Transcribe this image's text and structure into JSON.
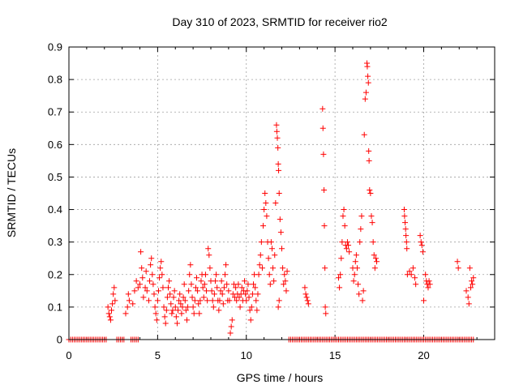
{
  "chart_data": {
    "type": "scatter",
    "title": "Day 310 of 2023, SRMTID for receiver rio2",
    "xlabel": "GPS time / hours",
    "ylabel": "SRMTID / TECUs",
    "xlim": [
      0,
      24
    ],
    "ylim": [
      0,
      0.9
    ],
    "xticks": [
      "0",
      "5",
      "10",
      "15",
      "20"
    ],
    "yticks": [
      "0",
      "0.1",
      "0.2",
      "0.3",
      "0.4",
      "0.5",
      "0.6",
      "0.7",
      "0.8",
      "0.9"
    ],
    "grid": true,
    "marker": "plus",
    "color": "#ff0000",
    "series": [
      {
        "name": "SRMTID",
        "points": [
          [
            2.2,
            0.1
          ],
          [
            2.25,
            0.08
          ],
          [
            2.3,
            0.07
          ],
          [
            2.35,
            0.06
          ],
          [
            2.4,
            0.09
          ],
          [
            2.45,
            0.11
          ],
          [
            2.5,
            0.14
          ],
          [
            2.55,
            0.16
          ],
          [
            2.6,
            0.12
          ],
          [
            3.2,
            0.08
          ],
          [
            3.3,
            0.1
          ],
          [
            3.35,
            0.14
          ],
          [
            3.4,
            0.12
          ],
          [
            3.6,
            0.11
          ],
          [
            3.7,
            0.15
          ],
          [
            3.8,
            0.18
          ],
          [
            3.9,
            0.16
          ],
          [
            4.0,
            0.17
          ],
          [
            4.05,
            0.27
          ],
          [
            4.1,
            0.22
          ],
          [
            4.15,
            0.19
          ],
          [
            4.2,
            0.13
          ],
          [
            4.3,
            0.16
          ],
          [
            4.35,
            0.21
          ],
          [
            4.4,
            0.15
          ],
          [
            4.5,
            0.12
          ],
          [
            4.55,
            0.18
          ],
          [
            4.6,
            0.23
          ],
          [
            4.65,
            0.25
          ],
          [
            4.7,
            0.2
          ],
          [
            4.75,
            0.17
          ],
          [
            4.8,
            0.14
          ],
          [
            4.85,
            0.1
          ],
          [
            4.9,
            0.08
          ],
          [
            4.95,
            0.06
          ],
          [
            5.0,
            0.12
          ],
          [
            5.05,
            0.15
          ],
          [
            5.1,
            0.19
          ],
          [
            5.15,
            0.22
          ],
          [
            5.2,
            0.24
          ],
          [
            5.25,
            0.2
          ],
          [
            5.3,
            0.16
          ],
          [
            5.35,
            0.1
          ],
          [
            5.4,
            0.07
          ],
          [
            5.45,
            0.05
          ],
          [
            5.5,
            0.09
          ],
          [
            5.55,
            0.13
          ],
          [
            5.6,
            0.16
          ],
          [
            5.65,
            0.18
          ],
          [
            5.7,
            0.14
          ],
          [
            5.75,
            0.11
          ],
          [
            5.8,
            0.08
          ],
          [
            5.85,
            0.09
          ],
          [
            5.9,
            0.13
          ],
          [
            5.95,
            0.15
          ],
          [
            6.0,
            0.1
          ],
          [
            6.05,
            0.07
          ],
          [
            6.1,
            0.05
          ],
          [
            6.15,
            0.09
          ],
          [
            6.2,
            0.12
          ],
          [
            6.25,
            0.14
          ],
          [
            6.3,
            0.11
          ],
          [
            6.35,
            0.08
          ],
          [
            6.4,
            0.1
          ],
          [
            6.45,
            0.13
          ],
          [
            6.5,
            0.17
          ],
          [
            6.55,
            0.12
          ],
          [
            6.6,
            0.09
          ],
          [
            6.65,
            0.06
          ],
          [
            6.7,
            0.1
          ],
          [
            6.75,
            0.15
          ],
          [
            6.8,
            0.2
          ],
          [
            6.85,
            0.23
          ],
          [
            6.9,
            0.17
          ],
          [
            6.95,
            0.13
          ],
          [
            7.0,
            0.1
          ],
          [
            7.05,
            0.08
          ],
          [
            7.1,
            0.12
          ],
          [
            7.15,
            0.16
          ],
          [
            7.2,
            0.19
          ],
          [
            7.25,
            0.15
          ],
          [
            7.3,
            0.11
          ],
          [
            7.35,
            0.08
          ],
          [
            7.4,
            0.12
          ],
          [
            7.45,
            0.18
          ],
          [
            7.5,
            0.2
          ],
          [
            7.55,
            0.16
          ],
          [
            7.6,
            0.13
          ],
          [
            7.65,
            0.17
          ],
          [
            7.7,
            0.2
          ],
          [
            7.75,
            0.15
          ],
          [
            7.8,
            0.12
          ],
          [
            7.85,
            0.28
          ],
          [
            7.9,
            0.26
          ],
          [
            7.95,
            0.22
          ],
          [
            8.0,
            0.18
          ],
          [
            8.05,
            0.15
          ],
          [
            8.1,
            0.12
          ],
          [
            8.15,
            0.1
          ],
          [
            8.2,
            0.14
          ],
          [
            8.25,
            0.18
          ],
          [
            8.3,
            0.2
          ],
          [
            8.35,
            0.16
          ],
          [
            8.4,
            0.12
          ],
          [
            8.45,
            0.09
          ],
          [
            8.5,
            0.12
          ],
          [
            8.55,
            0.15
          ],
          [
            8.6,
            0.18
          ],
          [
            8.65,
            0.14
          ],
          [
            8.7,
            0.11
          ],
          [
            8.75,
            0.16
          ],
          [
            8.8,
            0.2
          ],
          [
            8.85,
            0.23
          ],
          [
            8.9,
            0.17
          ],
          [
            8.95,
            0.12
          ],
          [
            9.0,
            0.15
          ],
          [
            9.05,
            0.12
          ],
          [
            9.1,
            0.02
          ],
          [
            9.15,
            0.04
          ],
          [
            9.2,
            0.06
          ],
          [
            9.25,
            0.14
          ],
          [
            9.3,
            0.17
          ],
          [
            9.35,
            0.13
          ],
          [
            9.4,
            0.16
          ],
          [
            9.45,
            0.12
          ],
          [
            9.5,
            0.14
          ],
          [
            9.55,
            0.17
          ],
          [
            9.6,
            0.13
          ],
          [
            9.65,
            0.1
          ],
          [
            9.7,
            0.14
          ],
          [
            9.75,
            0.16
          ],
          [
            9.8,
            0.12
          ],
          [
            9.85,
            0.15
          ],
          [
            9.9,
            0.18
          ],
          [
            9.95,
            0.14
          ],
          [
            10.0,
            0.12
          ],
          [
            10.05,
            0.15
          ],
          [
            10.1,
            0.17
          ],
          [
            10.15,
            0.13
          ],
          [
            10.2,
            0.09
          ],
          [
            10.25,
            0.06
          ],
          [
            10.3,
            0.1
          ],
          [
            10.35,
            0.14
          ],
          [
            10.4,
            0.17
          ],
          [
            10.45,
            0.2
          ],
          [
            10.5,
            0.16
          ],
          [
            10.55,
            0.12
          ],
          [
            10.6,
            0.09
          ],
          [
            10.65,
            0.14
          ],
          [
            10.7,
            0.2
          ],
          [
            10.75,
            0.23
          ],
          [
            10.8,
            0.26
          ],
          [
            10.85,
            0.3
          ],
          [
            10.9,
            0.22
          ],
          [
            10.95,
            0.35
          ],
          [
            11.0,
            0.4
          ],
          [
            11.05,
            0.45
          ],
          [
            11.1,
            0.42
          ],
          [
            11.15,
            0.38
          ],
          [
            11.2,
            0.3
          ],
          [
            11.25,
            0.25
          ],
          [
            11.3,
            0.2
          ],
          [
            11.35,
            0.17
          ],
          [
            11.4,
            0.3
          ],
          [
            11.45,
            0.28
          ],
          [
            11.5,
            0.22
          ],
          [
            11.55,
            0.18
          ],
          [
            11.6,
            0.26
          ],
          [
            11.65,
            0.42
          ],
          [
            11.7,
            0.66
          ],
          [
            11.72,
            0.64
          ],
          [
            11.75,
            0.62
          ],
          [
            11.78,
            0.59
          ],
          [
            11.8,
            0.54
          ],
          [
            11.82,
            0.52
          ],
          [
            11.85,
            0.45
          ],
          [
            11.9,
            0.37
          ],
          [
            11.95,
            0.33
          ],
          [
            12.0,
            0.28
          ],
          [
            12.05,
            0.22
          ],
          [
            12.1,
            0.17
          ],
          [
            12.15,
            0.2
          ],
          [
            12.2,
            0.18
          ],
          [
            12.25,
            0.15
          ],
          [
            12.3,
            0.21
          ],
          [
            11.8,
            0.1
          ],
          [
            11.85,
            0.12
          ],
          [
            13.3,
            0.16
          ],
          [
            13.35,
            0.14
          ],
          [
            13.4,
            0.13
          ],
          [
            13.45,
            0.12
          ],
          [
            13.5,
            0.11
          ],
          [
            14.3,
            0.71
          ],
          [
            14.32,
            0.65
          ],
          [
            14.35,
            0.57
          ],
          [
            14.38,
            0.46
          ],
          [
            14.4,
            0.35
          ],
          [
            14.43,
            0.22
          ],
          [
            14.45,
            0.1
          ],
          [
            14.48,
            0.08
          ],
          [
            15.2,
            0.19
          ],
          [
            15.25,
            0.16
          ],
          [
            15.3,
            0.2
          ],
          [
            15.35,
            0.25
          ],
          [
            15.4,
            0.3
          ],
          [
            15.45,
            0.38
          ],
          [
            15.5,
            0.4
          ],
          [
            15.55,
            0.35
          ],
          [
            15.6,
            0.29
          ],
          [
            15.65,
            0.28
          ],
          [
            15.7,
            0.3
          ],
          [
            15.75,
            0.29
          ],
          [
            15.8,
            0.27
          ],
          [
            16.0,
            0.22
          ],
          [
            16.05,
            0.18
          ],
          [
            16.1,
            0.2
          ],
          [
            16.15,
            0.24
          ],
          [
            16.2,
            0.26
          ],
          [
            16.25,
            0.22
          ],
          [
            16.3,
            0.17
          ],
          [
            16.35,
            0.14
          ],
          [
            16.4,
            0.3
          ],
          [
            16.45,
            0.34
          ],
          [
            16.5,
            0.38
          ],
          [
            16.55,
            0.12
          ],
          [
            16.6,
            0.15
          ],
          [
            16.65,
            0.63
          ],
          [
            16.7,
            0.74
          ],
          [
            16.75,
            0.76
          ],
          [
            16.8,
            0.85
          ],
          [
            16.82,
            0.84
          ],
          [
            16.85,
            0.81
          ],
          [
            16.88,
            0.79
          ],
          [
            16.9,
            0.58
          ],
          [
            16.92,
            0.55
          ],
          [
            16.95,
            0.46
          ],
          [
            17.0,
            0.45
          ],
          [
            17.05,
            0.38
          ],
          [
            17.1,
            0.36
          ],
          [
            17.15,
            0.3
          ],
          [
            17.2,
            0.26
          ],
          [
            17.25,
            0.22
          ],
          [
            17.3,
            0.25
          ],
          [
            17.35,
            0.24
          ],
          [
            18.9,
            0.4
          ],
          [
            18.92,
            0.38
          ],
          [
            18.95,
            0.36
          ],
          [
            18.98,
            0.34
          ],
          [
            19.0,
            0.32
          ],
          [
            19.03,
            0.3
          ],
          [
            19.05,
            0.28
          ],
          [
            19.08,
            0.2
          ],
          [
            19.2,
            0.21
          ],
          [
            19.3,
            0.2
          ],
          [
            19.4,
            0.22
          ],
          [
            19.5,
            0.19
          ],
          [
            19.55,
            0.17
          ],
          [
            19.8,
            0.32
          ],
          [
            19.85,
            0.3
          ],
          [
            19.9,
            0.29
          ],
          [
            19.95,
            0.27
          ],
          [
            20.0,
            0.12
          ],
          [
            20.1,
            0.2
          ],
          [
            20.15,
            0.18
          ],
          [
            20.2,
            0.17
          ],
          [
            20.25,
            0.16
          ],
          [
            20.3,
            0.18
          ],
          [
            20.35,
            0.17
          ],
          [
            21.9,
            0.24
          ],
          [
            21.95,
            0.22
          ],
          [
            22.4,
            0.15
          ],
          [
            22.5,
            0.13
          ],
          [
            22.55,
            0.11
          ],
          [
            22.6,
            0.22
          ],
          [
            22.65,
            0.16
          ],
          [
            22.7,
            0.18
          ],
          [
            22.75,
            0.17
          ],
          [
            22.8,
            0.19
          ]
        ]
      }
    ]
  }
}
